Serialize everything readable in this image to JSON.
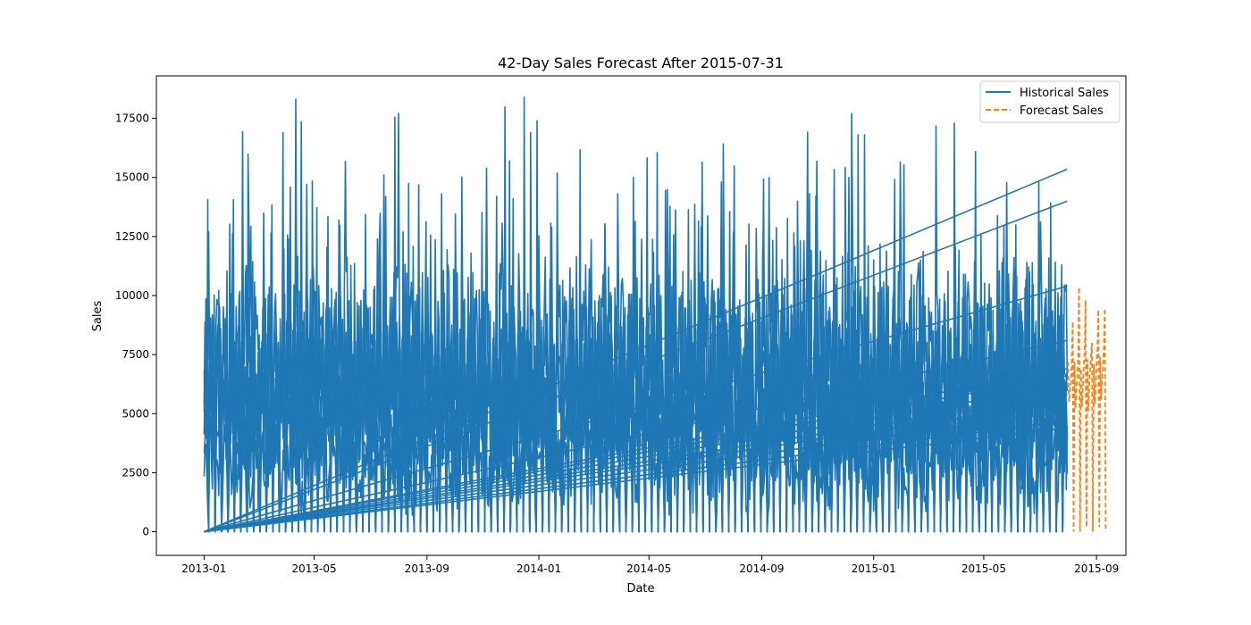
{
  "chart_data": {
    "type": "line",
    "title": "42-Day Sales Forecast After 2015-07-31",
    "xlabel": "Date",
    "ylabel": "Sales",
    "xlim": [
      "2012-11-10",
      "2015-10-03"
    ],
    "ylim": [
      -1000,
      19300
    ],
    "x_ticks": [
      "2013-01",
      "2013-05",
      "2013-09",
      "2014-01",
      "2014-05",
      "2014-09",
      "2015-01",
      "2015-05",
      "2015-09"
    ],
    "y_ticks": [
      0,
      2500,
      5000,
      7500,
      10000,
      12500,
      15000,
      17500
    ],
    "y_tick_labels": [
      "0",
      "2500",
      "5000",
      "7500",
      "10000",
      "12500",
      "15000",
      "17500"
    ],
    "grid": false,
    "legend_position": "top-right",
    "series": [
      {
        "name": "Historical Sales",
        "color": "#1f77b4",
        "style": "solid",
        "date_range": [
          "2013-01-01",
          "2015-07-31"
        ],
        "description": "Daily sales for several stores concatenated; values oscillate between 0 and roughly 8000-18000, each store trace ending near 2015-07-31 and wrapping back to 2013-01-01.",
        "peaks": [
          {
            "date": "2013-01-06",
            "value": 12700
          },
          {
            "date": "2013-03-28",
            "value": 16900
          },
          {
            "date": "2013-04-29",
            "value": 14850
          },
          {
            "date": "2013-07-28",
            "value": 17550
          },
          {
            "date": "2013-08-12",
            "value": 14750
          },
          {
            "date": "2013-11-30",
            "value": 15700
          },
          {
            "date": "2013-12-16",
            "value": 18400
          },
          {
            "date": "2013-12-23",
            "value": 16900
          },
          {
            "date": "2013-12-30",
            "value": 17400
          },
          {
            "date": "2014-04-14",
            "value": 15000
          },
          {
            "date": "2014-05-10",
            "value": 16050
          },
          {
            "date": "2014-06-28",
            "value": 15650
          },
          {
            "date": "2014-07-28",
            "value": 13550
          },
          {
            "date": "2014-12-08",
            "value": 17700
          },
          {
            "date": "2014-12-15",
            "value": 16800
          },
          {
            "date": "2014-12-22",
            "value": 16800
          },
          {
            "date": "2015-03-30",
            "value": 17300
          },
          {
            "date": "2015-04-22",
            "value": 16100
          },
          {
            "date": "2015-06-30",
            "value": 14800
          }
        ],
        "wrap_lines": [
          {
            "from_date": "2013-01-01",
            "from_value": 0,
            "to_date": "2015-07-31",
            "to_value": 15350
          },
          {
            "from_date": "2013-01-01",
            "from_value": 0,
            "to_date": "2015-07-31",
            "to_value": 14000
          },
          {
            "from_date": "2013-01-01",
            "from_value": 0,
            "to_date": "2015-07-31",
            "to_value": 10400
          },
          {
            "from_date": "2013-01-01",
            "from_value": 0,
            "to_date": "2015-07-31",
            "to_value": 8100
          },
          {
            "from_date": "2013-01-01",
            "from_value": 0,
            "to_date": "2015-07-31",
            "to_value": 6900
          },
          {
            "from_date": "2013-01-01",
            "from_value": 0,
            "to_date": "2015-07-31",
            "to_value": 6600
          },
          {
            "from_date": "2013-01-01",
            "from_value": 0,
            "to_date": "2015-07-31",
            "to_value": 6200
          },
          {
            "from_date": "2013-01-01",
            "from_value": 0,
            "to_date": "2015-07-31",
            "to_value": 5800
          },
          {
            "from_date": "2013-01-01",
            "from_value": 0,
            "to_date": "2015-07-31",
            "to_value": 5500
          },
          {
            "from_date": "2013-01-01",
            "from_value": 0,
            "to_date": "2015-07-31",
            "to_value": 5100
          },
          {
            "from_date": "2013-01-01",
            "from_value": 0,
            "to_date": "2015-07-31",
            "to_value": 4700
          },
          {
            "from_date": "2013-01-01",
            "from_value": 0,
            "to_date": "2015-07-31",
            "to_value": 4400
          }
        ]
      },
      {
        "name": "Forecast Sales",
        "color": "#ff7f0e",
        "style": "dashed",
        "start_date": "2015-08-01",
        "values": [
          7200,
          5500,
          6000,
          6300,
          7100,
          8900,
          0,
          7200,
          5200,
          6000,
          6500,
          7400,
          10350,
          0,
          6900,
          5300,
          6100,
          7000,
          7500,
          9800,
          200,
          7300,
          5100,
          6200,
          6900,
          7500,
          8000,
          0,
          7100,
          5400,
          6000,
          7200,
          7700,
          9400,
          200,
          7400,
          5600,
          6300,
          7000,
          7800,
          9450,
          0
        ]
      }
    ]
  }
}
